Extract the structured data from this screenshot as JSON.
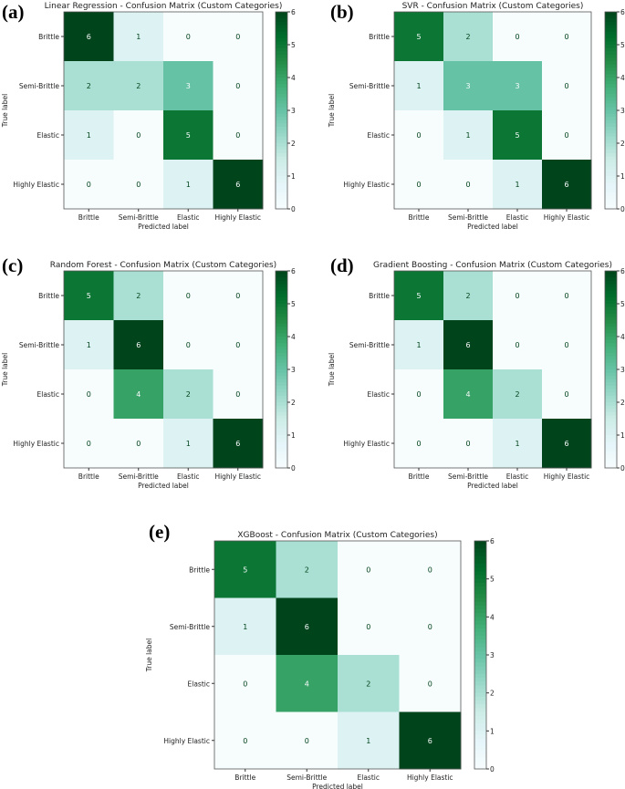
{
  "chart_data": [
    {
      "panel_label": "(a)",
      "type": "heatmap",
      "title": "Linear Regression - Confusion Matrix (Custom Categories)",
      "xlabel": "Predicted label",
      "ylabel": "True label",
      "categories": [
        "Brittle",
        "Semi-Brittle",
        "Elastic",
        "Highly Elastic"
      ],
      "values": [
        [
          6,
          1,
          0,
          0
        ],
        [
          2,
          2,
          3,
          0
        ],
        [
          1,
          0,
          5,
          0
        ],
        [
          0,
          0,
          1,
          6
        ]
      ],
      "colorbar": {
        "range": [
          0,
          6
        ],
        "ticks": [
          "0",
          "1",
          "2",
          "3",
          "4",
          "5",
          "6"
        ]
      },
      "colormap": "BuGn"
    },
    {
      "panel_label": "(b)",
      "type": "heatmap",
      "title": "SVR - Confusion Matrix (Custom Categories)",
      "xlabel": "Predicted label",
      "ylabel": "True label",
      "categories": [
        "Brittle",
        "Semi-Brittle",
        "Elastic",
        "Highly Elastic"
      ],
      "values": [
        [
          5,
          2,
          0,
          0
        ],
        [
          1,
          3,
          3,
          0
        ],
        [
          0,
          1,
          5,
          0
        ],
        [
          0,
          0,
          1,
          6
        ]
      ],
      "colorbar": {
        "range": [
          0,
          6
        ],
        "ticks": [
          "0",
          "1",
          "2",
          "3",
          "4",
          "5",
          "6"
        ]
      },
      "colormap": "BuGn"
    },
    {
      "panel_label": "(c)",
      "type": "heatmap",
      "title": "Random Forest - Confusion Matrix (Custom Categories)",
      "xlabel": "Predicted label",
      "ylabel": "True label",
      "categories": [
        "Brittle",
        "Semi-Brittle",
        "Elastic",
        "Highly Elastic"
      ],
      "values": [
        [
          5,
          2,
          0,
          0
        ],
        [
          1,
          6,
          0,
          0
        ],
        [
          0,
          4,
          2,
          0
        ],
        [
          0,
          0,
          1,
          6
        ]
      ],
      "colorbar": {
        "range": [
          0,
          6
        ],
        "ticks": [
          "0",
          "1",
          "2",
          "3",
          "4",
          "5",
          "6"
        ]
      },
      "colormap": "BuGn"
    },
    {
      "panel_label": "(d)",
      "type": "heatmap",
      "title": "Gradient Boosting - Confusion Matrix (Custom Categories)",
      "xlabel": "Predicted label",
      "ylabel": "True label",
      "categories": [
        "Brittle",
        "Semi-Brittle",
        "Elastic",
        "Highly Elastic"
      ],
      "values": [
        [
          5,
          2,
          0,
          0
        ],
        [
          1,
          6,
          0,
          0
        ],
        [
          0,
          4,
          2,
          0
        ],
        [
          0,
          0,
          1,
          6
        ]
      ],
      "colorbar": {
        "range": [
          0,
          6
        ],
        "ticks": [
          "0",
          "1",
          "2",
          "3",
          "4",
          "5",
          "6"
        ]
      },
      "colormap": "BuGn"
    },
    {
      "panel_label": "(e)",
      "type": "heatmap",
      "title": "XGBoost - Confusion Matrix (Custom Categories)",
      "xlabel": "Predicted label",
      "ylabel": "True label",
      "categories": [
        "Brittle",
        "Semi-Brittle",
        "Elastic",
        "Highly Elastic"
      ],
      "values": [
        [
          5,
          2,
          0,
          0
        ],
        [
          1,
          6,
          0,
          0
        ],
        [
          0,
          4,
          2,
          0
        ],
        [
          0,
          0,
          1,
          6
        ]
      ],
      "colorbar": {
        "range": [
          0,
          6
        ],
        "ticks": [
          "0",
          "1",
          "2",
          "3",
          "4",
          "5",
          "6"
        ]
      },
      "colormap": "BuGn"
    }
  ]
}
